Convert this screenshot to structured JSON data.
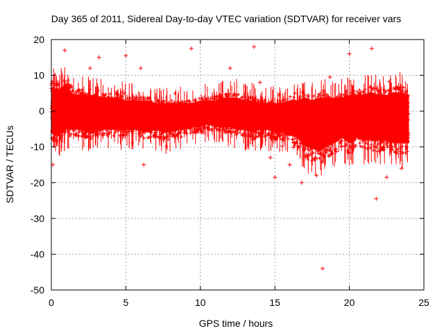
{
  "chart_data": {
    "type": "scatter",
    "title": "Day 365 of 2011, Sidereal Day-to-day VTEC variation (SDTVAR) for receiver vars",
    "xlabel": "GPS time / hours",
    "ylabel": "SDTVAR / TECUs",
    "xlim": [
      0,
      25
    ],
    "ylim": [
      -50,
      20
    ],
    "grid": true,
    "x_ticks": [
      0,
      5,
      10,
      15,
      20,
      25
    ],
    "y_ticks": [
      -50,
      -40,
      -30,
      -20,
      -10,
      0,
      10,
      20
    ],
    "x_tick_labels": [
      "0",
      "5",
      "10",
      "15",
      "20",
      "25"
    ],
    "y_tick_labels": [
      "-50",
      "-40",
      "-30",
      "-20",
      "-10",
      "0",
      "10",
      "20"
    ],
    "marker": "+",
    "color": "#ff0000",
    "series": [
      {
        "name": "SDTVAR",
        "band_hours": [
          0,
          0.5,
          1,
          1.5,
          2,
          2.5,
          3,
          3.5,
          4,
          4.5,
          5,
          5.5,
          6,
          6.5,
          7,
          7.5,
          8,
          8.5,
          9,
          9.5,
          10,
          10.5,
          11,
          11.5,
          12,
          12.5,
          13,
          13.5,
          14,
          14.5,
          15,
          15.5,
          16,
          16.5,
          17,
          17.5,
          18,
          18.5,
          19,
          19.5,
          20,
          20.5,
          21,
          21.5,
          22,
          22.5,
          23,
          23.5,
          24
        ],
        "band_upper": [
          9,
          8,
          10,
          6,
          6,
          6,
          6,
          5,
          5,
          5,
          4,
          4,
          4,
          4,
          3,
          3,
          3,
          3,
          3,
          3,
          4,
          4,
          4,
          5,
          5,
          5,
          4,
          4,
          3,
          3,
          3,
          3,
          4,
          4,
          5,
          4,
          5,
          5,
          5,
          5,
          6,
          6,
          6,
          7,
          6,
          6,
          7,
          7,
          6
        ],
        "band_lower": [
          -8,
          -9,
          -7,
          -7,
          -7,
          -8,
          -7,
          -7,
          -7,
          -7,
          -7,
          -7,
          -7,
          -8,
          -7,
          -8,
          -8,
          -7,
          -7,
          -6,
          -6,
          -5,
          -6,
          -6,
          -6,
          -7,
          -7,
          -8,
          -7,
          -7,
          -8,
          -8,
          -9,
          -10,
          -13,
          -14,
          -15,
          -13,
          -12,
          -10,
          -12,
          -10,
          -11,
          -11,
          -11,
          -11,
          -12,
          -12,
          -12
        ],
        "outliers": [
          [
            0.1,
            -15
          ],
          [
            0.9,
            17
          ],
          [
            2.6,
            12
          ],
          [
            3.2,
            15
          ],
          [
            5.0,
            15.5
          ],
          [
            6.0,
            12
          ],
          [
            6.2,
            -15
          ],
          [
            9.4,
            17.5
          ],
          [
            12.0,
            12
          ],
          [
            13.6,
            18
          ],
          [
            14.0,
            8
          ],
          [
            14.7,
            -13
          ],
          [
            15.0,
            -18.5
          ],
          [
            16.0,
            -15
          ],
          [
            16.8,
            -20
          ],
          [
            17.8,
            -18
          ],
          [
            18.2,
            -44
          ],
          [
            18.7,
            9.5
          ],
          [
            20.0,
            16
          ],
          [
            21.5,
            17.5
          ],
          [
            21.8,
            -24.5
          ],
          [
            22.5,
            -18.5
          ],
          [
            23.5,
            -16
          ]
        ]
      }
    ]
  }
}
